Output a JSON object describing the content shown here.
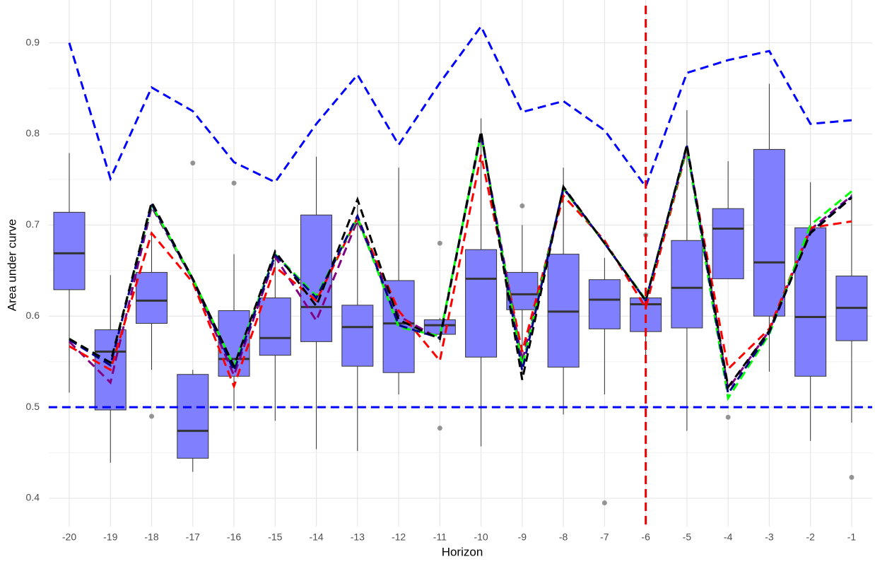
{
  "chart_data": {
    "type": "box",
    "x_label": "Horizon",
    "y_label": "Area under curve",
    "categories": [
      "-20",
      "-19",
      "-18",
      "-17",
      "-16",
      "-15",
      "-14",
      "-13",
      "-12",
      "-11",
      "-10",
      "-9",
      "-8",
      "-7",
      "-6",
      "-5",
      "-4",
      "-3",
      "-2",
      "-1"
    ],
    "box_color": "#8080ff",
    "box_stroke": "#333333",
    "boxes": [
      {
        "low": 0.516,
        "q1": 0.629,
        "median": 0.669,
        "q3": 0.714,
        "high": 0.779,
        "outliers": []
      },
      {
        "low": 0.439,
        "q1": 0.497,
        "median": 0.561,
        "q3": 0.585,
        "high": 0.645,
        "outliers": []
      },
      {
        "low": 0.541,
        "q1": 0.592,
        "median": 0.617,
        "q3": 0.648,
        "high": 0.691,
        "outliers": [
          0.49
        ]
      },
      {
        "low": 0.429,
        "q1": 0.444,
        "median": 0.474,
        "q3": 0.536,
        "high": 0.541,
        "outliers": [
          0.768
        ]
      },
      {
        "low": 0.496,
        "q1": 0.534,
        "median": 0.553,
        "q3": 0.606,
        "high": 0.668,
        "outliers": [
          0.746
        ]
      },
      {
        "low": 0.485,
        "q1": 0.557,
        "median": 0.576,
        "q3": 0.62,
        "high": 0.668,
        "outliers": []
      },
      {
        "low": 0.454,
        "q1": 0.572,
        "median": 0.61,
        "q3": 0.711,
        "high": 0.775,
        "outliers": []
      },
      {
        "low": 0.452,
        "q1": 0.545,
        "median": 0.588,
        "q3": 0.612,
        "high": 0.722,
        "outliers": []
      },
      {
        "low": 0.514,
        "q1": 0.538,
        "median": 0.592,
        "q3": 0.639,
        "high": 0.763,
        "outliers": []
      },
      {
        "low": 0.571,
        "q1": 0.58,
        "median": 0.59,
        "q3": 0.596,
        "high": 0.598,
        "outliers": [
          0.68,
          0.477
        ]
      },
      {
        "low": 0.457,
        "q1": 0.555,
        "median": 0.641,
        "q3": 0.673,
        "high": 0.817,
        "outliers": []
      },
      {
        "low": 0.536,
        "q1": 0.607,
        "median": 0.624,
        "q3": 0.648,
        "high": 0.7,
        "outliers": [
          0.721
        ]
      },
      {
        "low": 0.492,
        "q1": 0.544,
        "median": 0.605,
        "q3": 0.668,
        "high": 0.763,
        "outliers": []
      },
      {
        "low": 0.514,
        "q1": 0.586,
        "median": 0.618,
        "q3": 0.64,
        "high": 0.664,
        "outliers": [
          0.395
        ]
      },
      {
        "low": 0.555,
        "q1": 0.583,
        "median": 0.613,
        "q3": 0.62,
        "high": 0.621,
        "outliers": [
          0.689
        ]
      },
      {
        "low": 0.474,
        "q1": 0.587,
        "median": 0.631,
        "q3": 0.683,
        "high": 0.826,
        "outliers": []
      },
      {
        "low": 0.641,
        "q1": 0.641,
        "median": 0.696,
        "q3": 0.718,
        "high": 0.77,
        "outliers": [
          0.489
        ]
      },
      {
        "low": 0.539,
        "q1": 0.6,
        "median": 0.659,
        "q3": 0.783,
        "high": 0.855,
        "outliers": []
      },
      {
        "low": 0.463,
        "q1": 0.534,
        "median": 0.599,
        "q3": 0.697,
        "high": 0.747,
        "outliers": []
      },
      {
        "low": 0.483,
        "q1": 0.573,
        "median": 0.609,
        "q3": 0.644,
        "high": 0.734,
        "outliers": [
          0.423
        ]
      }
    ],
    "series": [
      {
        "color": "#0000ff",
        "values": [
          0.9,
          0.751,
          0.851,
          0.825,
          0.769,
          0.747,
          0.811,
          0.865,
          0.788,
          0.856,
          0.918,
          0.824,
          0.836,
          0.804,
          0.742,
          0.867,
          0.881,
          0.891,
          0.811,
          0.815
        ]
      },
      {
        "color": "#800080",
        "values": [
          0.572,
          0.527,
          0.72,
          0.64,
          0.535,
          0.665,
          0.595,
          0.705,
          0.6,
          0.575,
          0.8,
          0.55,
          0.74,
          0.68,
          0.617,
          0.786,
          0.52,
          0.584,
          0.695,
          0.732
        ]
      },
      {
        "color": "#ff0000",
        "values": [
          0.567,
          0.541,
          0.691,
          0.637,
          0.523,
          0.654,
          0.617,
          0.708,
          0.606,
          0.551,
          0.777,
          0.561,
          0.732,
          0.683,
          0.609,
          0.784,
          0.542,
          0.586,
          0.697,
          0.704
        ]
      },
      {
        "color": "#00ff00",
        "values": [
          0.575,
          0.549,
          0.722,
          0.641,
          0.545,
          0.668,
          0.622,
          0.708,
          0.588,
          0.578,
          0.8,
          0.545,
          0.74,
          0.68,
          0.618,
          0.785,
          0.51,
          0.58,
          0.7,
          0.737
        ]
      },
      {
        "color": "#00008b",
        "values": [
          0.574,
          0.546,
          0.723,
          0.64,
          0.54,
          0.667,
          0.62,
          0.71,
          0.59,
          0.576,
          0.801,
          0.54,
          0.741,
          0.68,
          0.617,
          0.787,
          0.515,
          0.582,
          0.692,
          0.731
        ]
      },
      {
        "color": "#000000",
        "values": [
          0.575,
          0.549,
          0.725,
          0.641,
          0.545,
          0.671,
          0.611,
          0.728,
          0.596,
          0.575,
          0.803,
          0.53,
          0.742,
          0.68,
          0.617,
          0.788,
          0.522,
          0.584,
          0.691,
          0.73
        ]
      }
    ],
    "hline": {
      "value": 0.5,
      "color": "#0000ff"
    },
    "vline": {
      "category": "-6",
      "color": "#ee0000"
    },
    "ylim": [
      0.369,
      0.947
    ],
    "yticks": [
      0.4,
      0.5,
      0.6,
      0.7,
      0.8,
      0.9
    ],
    "grid": true
  }
}
